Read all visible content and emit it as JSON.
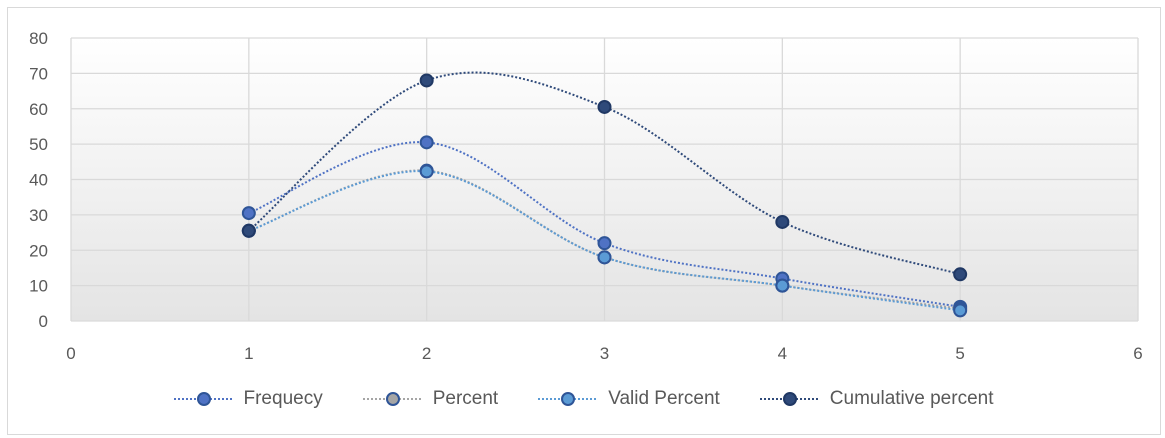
{
  "chart_data": {
    "type": "scatter",
    "title": "",
    "xlabel": "",
    "ylabel": "",
    "xlim": [
      0,
      6
    ],
    "ylim": [
      0,
      80
    ],
    "x_ticks": [
      "0",
      "1",
      "2",
      "3",
      "4",
      "5",
      "6"
    ],
    "y_ticks": [
      "0",
      "10",
      "20",
      "30",
      "40",
      "50",
      "60",
      "70",
      "80"
    ],
    "grid": true,
    "smoothed_lines": true,
    "line_style": "dotted",
    "legend_position": "bottom",
    "x": [
      1,
      2,
      3,
      4,
      5
    ],
    "series": [
      {
        "name": "Frequecy",
        "values": [
          30.5,
          50.5,
          22,
          12,
          4
        ],
        "color": "#4f72c4"
      },
      {
        "name": "Percent",
        "values": [
          25.5,
          42.5,
          18,
          10,
          3.5
        ],
        "color": "#a5a5a5"
      },
      {
        "name": "Valid Percent",
        "values": [
          25.5,
          42.3,
          18,
          10,
          3
        ],
        "color": "#5b9bd5"
      },
      {
        "name": "Cumulative percent",
        "values": [
          25.5,
          68,
          60.5,
          28,
          13.2
        ],
        "color": "#2f4a7a"
      }
    ]
  }
}
